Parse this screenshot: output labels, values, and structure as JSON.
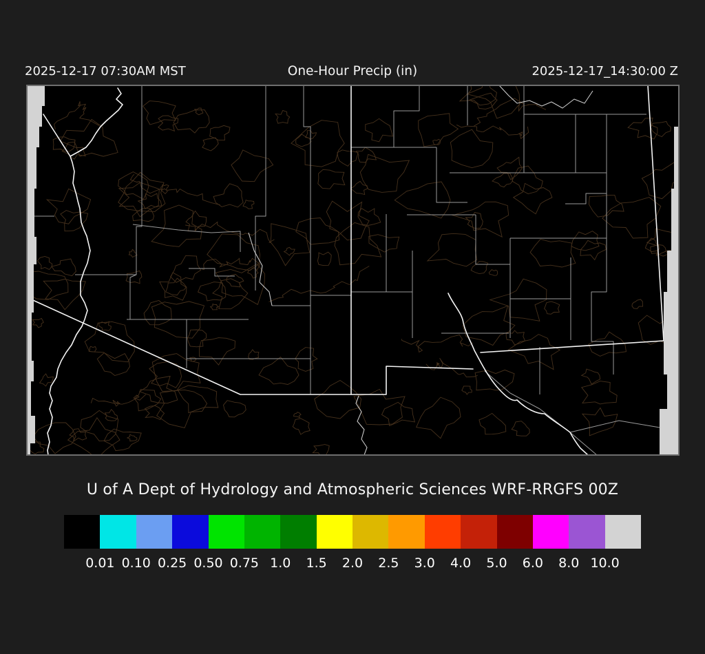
{
  "header": {
    "left_datetime": "2025-12-17 07:30AM MST",
    "title": "One-Hour Precip (in)",
    "right_datetime": "2025-12-17_14:30:00 Z"
  },
  "caption": "U of A Dept of Hydrology and Atmospheric Sciences WRF-RRGFS 00Z",
  "colorbar": {
    "units": "in",
    "colors": [
      "#000000",
      "#00E6E6",
      "#6B9EF2",
      "#0B0BDC",
      "#00E400",
      "#00B400",
      "#007E00",
      "#FFFF00",
      "#DDB800",
      "#FF9A00",
      "#FF3D00",
      "#C42108",
      "#7E0000",
      "#FF00FF",
      "#9B55D3",
      "#D3D3D3"
    ],
    "tick_labels": [
      "0.01",
      "0.10",
      "0.25",
      "0.50",
      "0.75",
      "1.0",
      "1.5",
      "2.0",
      "2.5",
      "3.0",
      "4.0",
      "5.0",
      "6.0",
      "8.0",
      "10.0"
    ]
  },
  "map": {
    "colors": {
      "background": "#000000",
      "state_border": "#f5f5f5",
      "county_border": "#9a9a9a",
      "river": "#e0e0e0",
      "terrain_contour": "#46311c",
      "domain_edge": "#d3d3d3",
      "frame": "#6f6f6f"
    }
  }
}
